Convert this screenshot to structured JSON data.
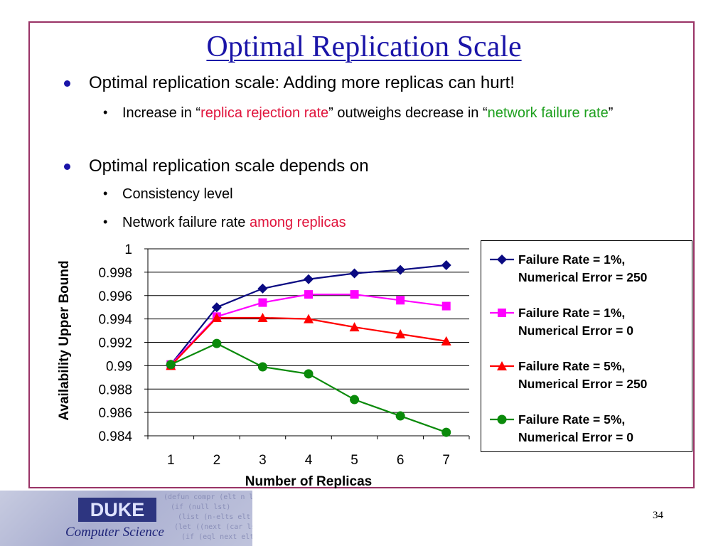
{
  "slide": {
    "title": "Optimal Replication Scale",
    "bullets": [
      {
        "text": "Optimal replication scale: Adding more replicas can hurt!",
        "sub": [
          {
            "p1": "Increase in “",
            "p2": "replica rejection rate",
            "p3": "” outweighs decrease in “",
            "p4": "network failure rate",
            "p5": "”"
          }
        ]
      },
      {
        "text": "Optimal replication scale depends on",
        "sub": [
          {
            "text": "Consistency level"
          },
          {
            "p1": "Network failure rate ",
            "p2": "among replicas"
          }
        ]
      }
    ],
    "page_number": "34",
    "footer": {
      "logo_text": "DUKE",
      "logo_subtitle": "Computer Science"
    }
  },
  "chart_data": {
    "type": "line",
    "x": [
      1,
      2,
      3,
      4,
      5,
      6,
      7
    ],
    "x_tick_labels": [
      "1",
      "2",
      "3",
      "4",
      "5",
      "6",
      "7"
    ],
    "xlabel": "Number of Replicas",
    "ylabel": "Availability Upper Bound",
    "ylim": [
      0.984,
      1.0
    ],
    "y_tick_labels": [
      "1",
      "0.998",
      "0.996",
      "0.994",
      "0.992",
      "0.99",
      "0.988",
      "0.986",
      "0.984"
    ],
    "y_ticks": [
      1.0,
      0.998,
      0.996,
      0.994,
      0.992,
      0.99,
      0.988,
      0.986,
      0.984
    ],
    "grid": "horizontal",
    "legend_position": "right",
    "series": [
      {
        "name_line1": "Failure Rate = 1%,",
        "name_line2": "Numerical Error = 250",
        "color": "#0a0a82",
        "marker": "diamond",
        "values": [
          0.9901,
          0.995,
          0.9966,
          0.9974,
          0.9979,
          0.9982,
          0.9986
        ]
      },
      {
        "name_line1": "Failure Rate = 1%,",
        "name_line2": "Numerical Error = 0",
        "color": "#ff00ff",
        "marker": "square",
        "values": [
          0.9901,
          0.9942,
          0.9954,
          0.9961,
          0.9961,
          0.9956,
          0.9951
        ]
      },
      {
        "name_line1": "Failure Rate = 5%,",
        "name_line2": "Numerical Error = 250",
        "color": "#ff0000",
        "marker": "triangle",
        "values": [
          0.99,
          0.9941,
          0.9941,
          0.994,
          0.9933,
          0.9927,
          0.9921
        ]
      },
      {
        "name_line1": "Failure Rate = 5%,",
        "name_line2": "Numerical Error = 0",
        "color": "#0a8a0a",
        "marker": "circle",
        "values": [
          0.9901,
          0.9919,
          0.9899,
          0.9893,
          0.9871,
          0.9857,
          0.9843
        ]
      }
    ]
  }
}
